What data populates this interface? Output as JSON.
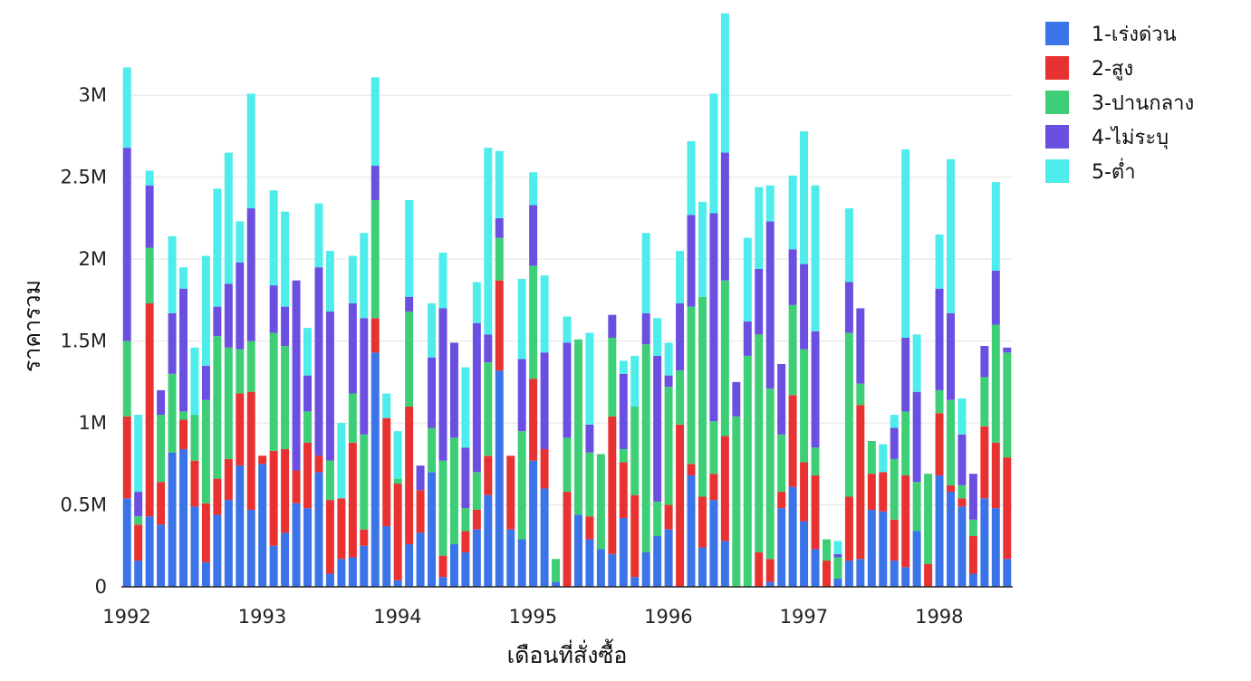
{
  "chart_data": {
    "type": "bar",
    "stacked": true,
    "xlabel": "เดือนที่สั่งซื้อ",
    "ylabel": "ราคารวม",
    "x_ticks": [
      "1992",
      "1993",
      "1994",
      "1995",
      "1996",
      "1997",
      "1998"
    ],
    "y_ticks": [
      "0",
      "0.5M",
      "1M",
      "1.5M",
      "2M",
      "2.5M",
      "3M"
    ],
    "y_tick_values": [
      0,
      500000,
      1000000,
      1500000,
      2000000,
      2500000,
      3000000
    ],
    "ylim": [
      0,
      3250000
    ],
    "start_month": "1992-01",
    "grid": true,
    "legend_position": "top-right",
    "series": [
      {
        "name": "1-เร่งด่วน",
        "color": "#3b73e8",
        "values": [
          540000,
          160000,
          430000,
          380000,
          820000,
          840000,
          490000,
          150000,
          440000,
          530000,
          740000,
          470000,
          750000,
          250000,
          330000,
          510000,
          480000,
          700000,
          80000,
          170000,
          180000,
          250000,
          1430000,
          370000,
          40000,
          260000,
          330000,
          700000,
          60000,
          260000,
          210000,
          350000,
          560000,
          1320000,
          350000,
          290000,
          770000,
          600000,
          30000,
          0,
          440000,
          290000,
          230000,
          200000,
          420000,
          60000,
          210000,
          310000,
          350000,
          0,
          680000,
          240000,
          530000,
          280000,
          0,
          0,
          0,
          30000,
          480000,
          610000,
          400000,
          230000,
          0,
          50000,
          160000,
          170000,
          470000,
          460000,
          160000,
          120000,
          340000,
          0,
          680000,
          580000,
          490000,
          80000,
          540000,
          480000,
          170000
        ]
      },
      {
        "name": "2-สูง",
        "color": "#e83232",
        "values": [
          500000,
          220000,
          1300000,
          260000,
          0,
          180000,
          280000,
          360000,
          220000,
          250000,
          440000,
          720000,
          50000,
          580000,
          510000,
          200000,
          400000,
          100000,
          450000,
          370000,
          700000,
          100000,
          210000,
          660000,
          590000,
          840000,
          260000,
          0,
          130000,
          0,
          130000,
          120000,
          240000,
          550000,
          450000,
          0,
          500000,
          240000,
          0,
          580000,
          0,
          140000,
          0,
          840000,
          340000,
          500000,
          0,
          0,
          150000,
          990000,
          70000,
          310000,
          160000,
          640000,
          0,
          0,
          210000,
          140000,
          100000,
          560000,
          360000,
          450000,
          160000,
          0,
          390000,
          940000,
          220000,
          240000,
          250000,
          560000,
          0,
          140000,
          380000,
          40000,
          50000,
          230000,
          440000,
          400000,
          620000
        ]
      },
      {
        "name": "3-ปานกลาง",
        "color": "#3ecf76",
        "values": [
          460000,
          50000,
          340000,
          410000,
          480000,
          50000,
          280000,
          630000,
          870000,
          680000,
          270000,
          310000,
          0,
          720000,
          630000,
          0,
          190000,
          0,
          240000,
          0,
          300000,
          580000,
          720000,
          0,
          30000,
          580000,
          0,
          270000,
          580000,
          650000,
          140000,
          230000,
          570000,
          260000,
          0,
          660000,
          690000,
          0,
          140000,
          330000,
          1070000,
          390000,
          580000,
          480000,
          80000,
          540000,
          1270000,
          210000,
          720000,
          330000,
          960000,
          1220000,
          320000,
          950000,
          1040000,
          1410000,
          1330000,
          1040000,
          350000,
          550000,
          690000,
          170000,
          130000,
          130000,
          1000000,
          130000,
          200000,
          0,
          370000,
          390000,
          300000,
          550000,
          140000,
          520000,
          80000,
          100000,
          300000,
          720000,
          640000
        ]
      },
      {
        "name": "4-ไม่ระบุ",
        "color": "#6a4fe0",
        "values": [
          1180000,
          150000,
          380000,
          150000,
          370000,
          750000,
          0,
          210000,
          180000,
          390000,
          530000,
          810000,
          0,
          290000,
          240000,
          1160000,
          220000,
          1150000,
          910000,
          0,
          550000,
          710000,
          210000,
          0,
          0,
          90000,
          150000,
          430000,
          930000,
          580000,
          370000,
          910000,
          170000,
          120000,
          0,
          440000,
          370000,
          590000,
          0,
          580000,
          0,
          170000,
          0,
          140000,
          460000,
          0,
          190000,
          890000,
          70000,
          410000,
          560000,
          0,
          1270000,
          780000,
          210000,
          210000,
          400000,
          1020000,
          430000,
          340000,
          520000,
          710000,
          0,
          20000,
          310000,
          460000,
          0,
          0,
          190000,
          450000,
          550000,
          0,
          620000,
          530000,
          310000,
          280000,
          190000,
          330000,
          30000
        ]
      },
      {
        "name": "5-ต่ำ",
        "color": "#4eeceb",
        "values": [
          490000,
          470000,
          90000,
          0,
          470000,
          130000,
          410000,
          670000,
          720000,
          800000,
          250000,
          700000,
          0,
          580000,
          580000,
          0,
          290000,
          390000,
          370000,
          460000,
          290000,
          520000,
          540000,
          150000,
          290000,
          590000,
          0,
          330000,
          340000,
          0,
          490000,
          250000,
          1140000,
          410000,
          0,
          490000,
          200000,
          470000,
          0,
          160000,
          0,
          560000,
          0,
          0,
          80000,
          310000,
          490000,
          230000,
          200000,
          320000,
          450000,
          580000,
          730000,
          850000,
          0,
          510000,
          500000,
          220000,
          0,
          450000,
          810000,
          890000,
          0,
          80000,
          450000,
          0,
          0,
          170000,
          80000,
          1150000,
          350000,
          0,
          330000,
          940000,
          220000,
          0,
          0,
          540000,
          0
        ]
      }
    ]
  }
}
